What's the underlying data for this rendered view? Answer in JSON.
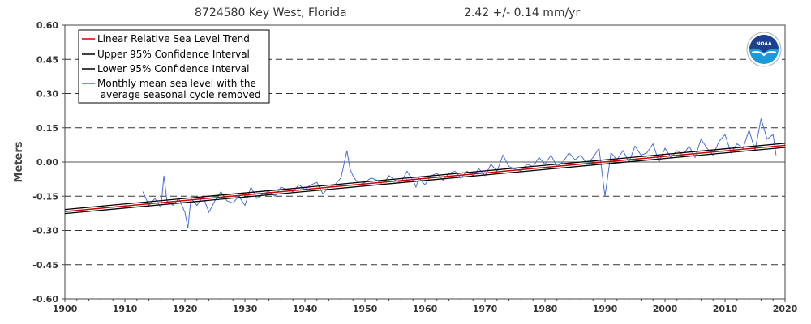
{
  "chart_data": {
    "type": "line",
    "title": "8724580 Key West, Florida",
    "trend_label": "2.42 +/-  0.14 mm/yr",
    "ylabel": "Meters",
    "xlabel": "",
    "xlim": [
      1900,
      2020
    ],
    "ylim": [
      -0.6,
      0.6
    ],
    "x_ticks": [
      1900,
      1910,
      1920,
      1930,
      1940,
      1950,
      1960,
      1970,
      1980,
      1990,
      2000,
      2010,
      2020
    ],
    "y_ticks": [
      0.6,
      0.45,
      0.3,
      0.15,
      0.0,
      -0.15,
      -0.3,
      -0.45,
      -0.6
    ],
    "y_tick_labels": [
      "0.60",
      "0.45",
      "0.30",
      "0.15",
      "0.00",
      "-0.15",
      "-0.30",
      "-0.45",
      "-0.60"
    ],
    "grid": "horizontal dashed",
    "legend_position": "top-left",
    "legend": [
      {
        "label": "Linear Relative Sea Level Trend",
        "color": "#cc0000"
      },
      {
        "label": "Upper 95% Confidence Interval",
        "color": "#000000"
      },
      {
        "label": "Lower 95% Confidence Interval",
        "color": "#000000"
      },
      {
        "label": "Monthly mean sea level with the\n average seasonal cycle removed",
        "color": "#4a6fd8"
      }
    ],
    "series": [
      {
        "name": "Linear Relative Sea Level Trend",
        "x": [
          1900,
          2020
        ],
        "y": [
          -0.217,
          0.073
        ],
        "color": "#cc0000"
      },
      {
        "name": "Upper 95% Confidence Interval",
        "x": [
          1900,
          2020
        ],
        "y": [
          -0.208,
          0.082
        ],
        "color": "#000000"
      },
      {
        "name": "Lower 95% Confidence Interval",
        "x": [
          1900,
          2020
        ],
        "y": [
          -0.226,
          0.064
        ],
        "color": "#000000"
      },
      {
        "name": "Monthly mean sea level with the average seasonal cycle removed",
        "color": "#4a6fd8",
        "x": [
          1913.0,
          1914.0,
          1915.0,
          1916.0,
          1916.5,
          1917.0,
          1918.0,
          1919.0,
          1920.0,
          1920.5,
          1921.0,
          1922.0,
          1923.0,
          1924.0,
          1925.0,
          1926.0,
          1927.0,
          1928.0,
          1929.0,
          1930.0,
          1931.0,
          1932.0,
          1933.0,
          1934.0,
          1935.0,
          1936.0,
          1937.0,
          1938.0,
          1939.0,
          1940.0,
          1941.0,
          1942.0,
          1943.0,
          1944.0,
          1945.0,
          1946.0,
          1947.0,
          1947.5,
          1948.0,
          1949.0,
          1950.0,
          1951.0,
          1952.0,
          1953.0,
          1954.0,
          1955.0,
          1956.0,
          1957.0,
          1958.0,
          1958.5,
          1959.0,
          1960.0,
          1961.0,
          1962.0,
          1963.0,
          1964.0,
          1965.0,
          1966.0,
          1967.0,
          1968.0,
          1969.0,
          1970.0,
          1971.0,
          1972.0,
          1973.0,
          1974.0,
          1975.0,
          1976.0,
          1977.0,
          1978.0,
          1979.0,
          1980.0,
          1981.0,
          1982.0,
          1983.0,
          1984.0,
          1985.0,
          1986.0,
          1987.0,
          1988.0,
          1989.0,
          1990.0,
          1991.0,
          1992.0,
          1993.0,
          1994.0,
          1995.0,
          1996.0,
          1997.0,
          1998.0,
          1999.0,
          2000.0,
          2001.0,
          2002.0,
          2003.0,
          2004.0,
          2005.0,
          2006.0,
          2007.0,
          2008.0,
          2009.0,
          2010.0,
          2011.0,
          2012.0,
          2013.0,
          2014.0,
          2015.0,
          2016.0,
          2017.0,
          2018.0,
          2018.5
        ],
        "y": [
          -0.13,
          -0.19,
          -0.16,
          -0.2,
          -0.06,
          -0.17,
          -0.19,
          -0.16,
          -0.22,
          -0.29,
          -0.16,
          -0.19,
          -0.15,
          -0.22,
          -0.17,
          -0.13,
          -0.17,
          -0.18,
          -0.15,
          -0.19,
          -0.11,
          -0.16,
          -0.14,
          -0.13,
          -0.15,
          -0.11,
          -0.12,
          -0.13,
          -0.1,
          -0.12,
          -0.1,
          -0.09,
          -0.14,
          -0.11,
          -0.1,
          -0.07,
          0.05,
          -0.03,
          -0.06,
          -0.1,
          -0.09,
          -0.07,
          -0.08,
          -0.1,
          -0.06,
          -0.08,
          -0.09,
          -0.04,
          -0.08,
          -0.11,
          -0.07,
          -0.1,
          -0.06,
          -0.05,
          -0.08,
          -0.05,
          -0.04,
          -0.07,
          -0.04,
          -0.06,
          -0.03,
          -0.06,
          -0.01,
          -0.04,
          0.03,
          -0.02,
          -0.03,
          -0.04,
          -0.01,
          -0.02,
          0.02,
          -0.01,
          0.03,
          -0.02,
          0.0,
          0.04,
          0.01,
          0.03,
          -0.01,
          0.02,
          0.06,
          -0.15,
          0.04,
          0.01,
          0.05,
          0.0,
          0.07,
          0.03,
          0.04,
          0.08,
          0.0,
          0.06,
          0.02,
          0.05,
          0.03,
          0.07,
          0.02,
          0.1,
          0.06,
          0.03,
          0.09,
          0.12,
          0.04,
          0.08,
          0.06,
          0.14,
          0.05,
          0.19,
          0.1,
          0.12,
          0.03
        ]
      }
    ]
  },
  "logo": {
    "label": "NOAA",
    "icon": "noaa-logo-icon"
  }
}
